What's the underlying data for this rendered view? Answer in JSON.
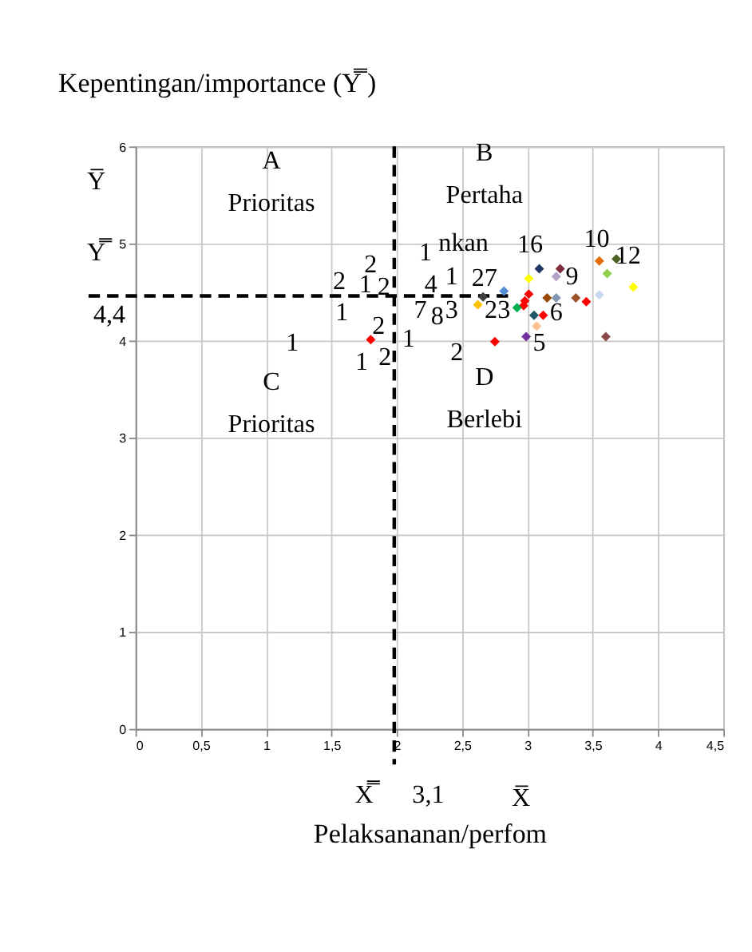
{
  "chart_data": {
    "type": "scatter",
    "title": "Kepentingan/importance (Y̿ )",
    "xlabel": "Pelaksananan/perfom",
    "x": [
      1.8,
      3.09,
      3.01,
      3.25,
      3.22,
      3.55,
      3.68,
      3.61,
      3.81,
      3.55,
      2.82,
      2.66,
      2.62,
      3.01,
      2.98,
      2.97,
      2.92,
      3.15,
      3.22,
      3.37,
      3.45,
      3.05,
      3.12,
      3.07,
      2.75,
      2.99,
      3.6
    ],
    "values": [
      4.01,
      4.74,
      4.64,
      4.74,
      4.66,
      4.82,
      4.84,
      4.69,
      4.55,
      4.47,
      4.51,
      4.45,
      4.37,
      4.48,
      4.41,
      4.36,
      4.34,
      4.44,
      4.44,
      4.44,
      4.4,
      4.26,
      4.26,
      4.15,
      3.99,
      4.04,
      4.04
    ],
    "colors": [
      "#ff0000",
      "#1f3864",
      "#ffff00",
      "#7f2f3f",
      "#b3a2c7",
      "#e46c0a",
      "#4f6228",
      "#92d050",
      "#ffff00",
      "#c6d9f1",
      "#558ed5",
      "#404040",
      "#ffc000",
      "#ff0000",
      "#ff0000",
      "#ff0000",
      "#00b050",
      "#984807",
      "#8497b0",
      "#a0522d",
      "#ff0000",
      "#215968",
      "#ff0000",
      "#fac090",
      "#ff0000",
      "#7030a0",
      "#8b4a4a"
    ],
    "marker": "diamond",
    "grid": true,
    "xlim": [
      0,
      4.5
    ],
    "xticks": [
      0,
      {
        "value": 0.5,
        "label": "0,5"
      },
      1,
      {
        "value": 1.5,
        "label": "1,5"
      },
      2,
      {
        "value": 2.5,
        "label": "2,5"
      },
      3,
      {
        "value": 3.5,
        "label": "3,5"
      },
      4,
      {
        "value": 4.5,
        "label": "4,5"
      }
    ],
    "ylim": [
      0,
      6
    ],
    "yticks": [
      0,
      1,
      2,
      3,
      4,
      5,
      6
    ],
    "ref_lines": [
      {
        "axis": "y",
        "value": 4.46,
        "color": "#000000",
        "line_style": "dashed"
      },
      {
        "axis": "x",
        "value": 1.98,
        "color": "#000000",
        "line_style": "dashed"
      }
    ],
    "annotations": [
      "A",
      "Prioritas",
      "B",
      "Pertaha",
      "nkan",
      "C",
      "Prioritas",
      "D",
      "Berlebi",
      "16",
      "10",
      "12",
      "9",
      "27",
      "23",
      "6",
      "5",
      "4",
      "7",
      "8",
      "3",
      "1",
      "1",
      "2",
      "2",
      "1",
      "2",
      "1",
      "2",
      "1",
      "1",
      "2",
      "2",
      "1",
      "Y̅",
      "Y̿",
      "4,4",
      "X̿",
      "3,1",
      "X̅"
    ]
  }
}
